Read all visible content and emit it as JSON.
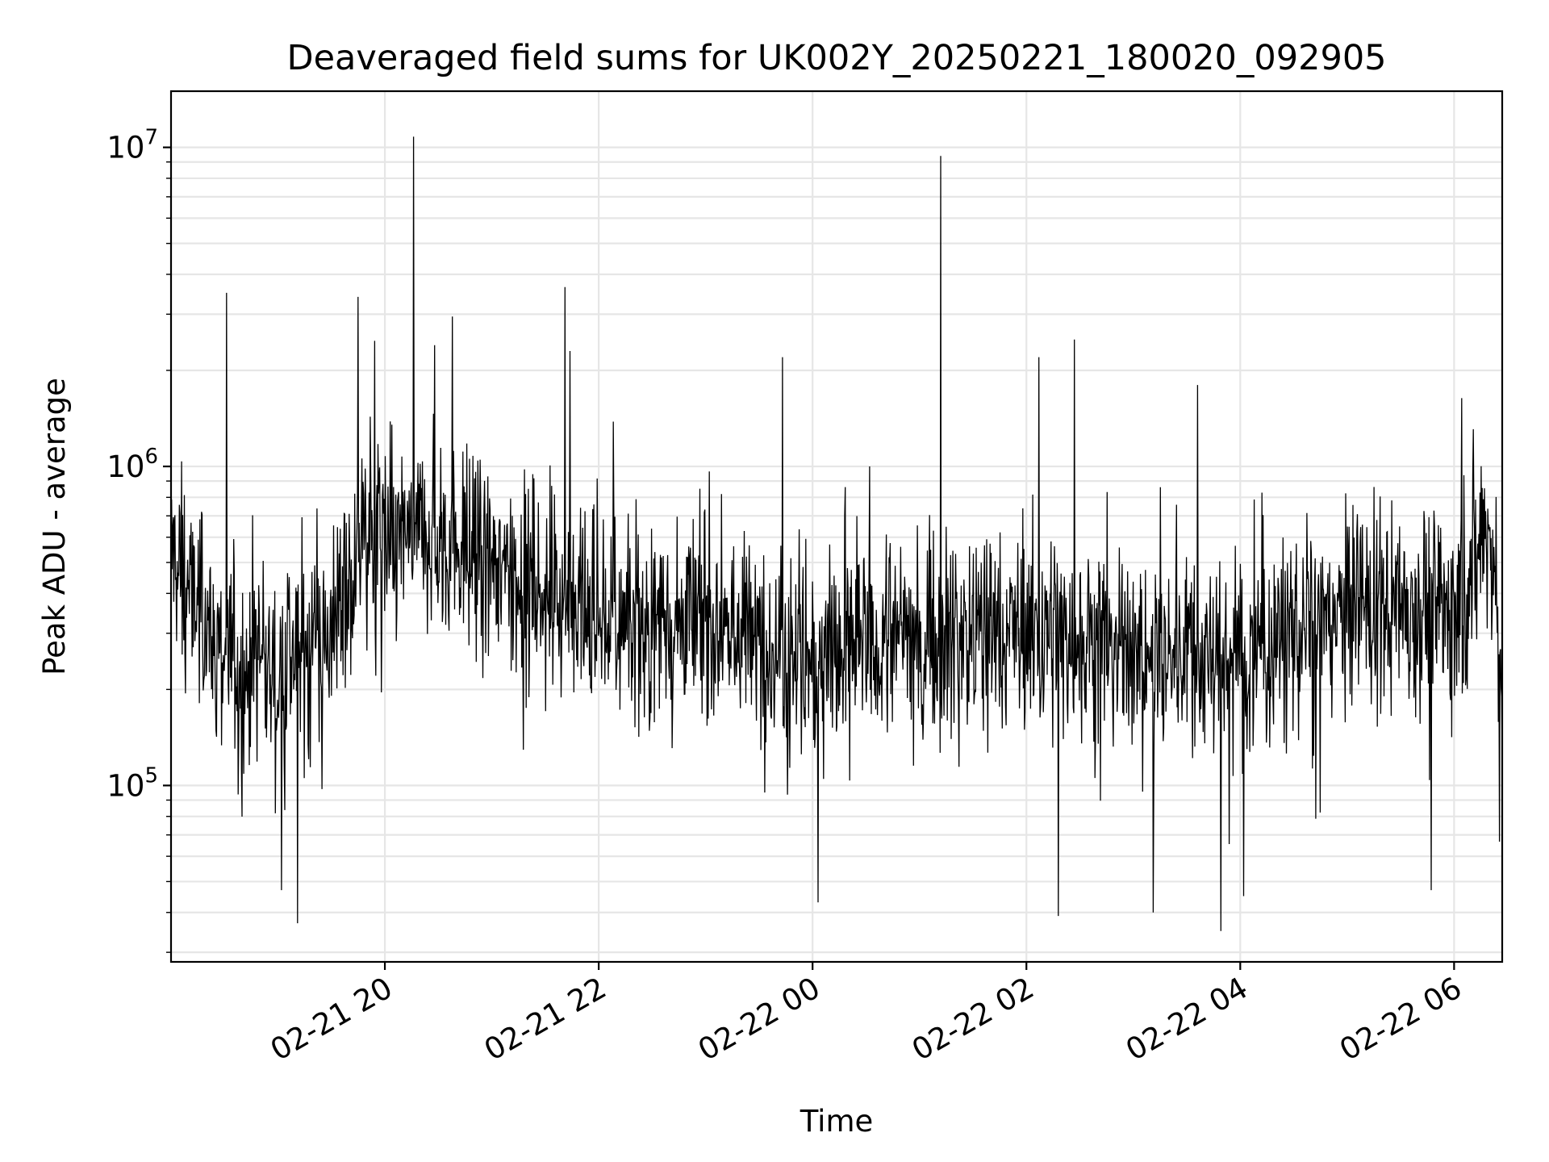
{
  "chart_data": {
    "type": "line",
    "title": "Deaveraged field sums for UK002Y_20250221_180020_092905",
    "xlabel": "Time",
    "ylabel": "Peak ADU - average",
    "yscale": "log",
    "ylim": [
      28000,
      15000000
    ],
    "xlim": [
      "2025-02-21 18:00",
      "2025-02-22 06:27"
    ],
    "grid": true,
    "x_ticks": [
      {
        "x": "2025-02-21 20:00",
        "label": "02-21 20"
      },
      {
        "x": "2025-02-21 22:00",
        "label": "02-21 22"
      },
      {
        "x": "2025-02-22 00:00",
        "label": "02-22 00"
      },
      {
        "x": "2025-02-22 02:00",
        "label": "02-22 02"
      },
      {
        "x": "2025-02-22 04:00",
        "label": "02-22 04"
      },
      {
        "x": "2025-02-22 06:00",
        "label": "02-22 06"
      }
    ],
    "y_ticks": [
      {
        "y": 100000,
        "base": "10",
        "exp": "5"
      },
      {
        "y": 1000000,
        "base": "10",
        "exp": "6"
      },
      {
        "y": 10000000,
        "base": "10",
        "exp": "7"
      }
    ],
    "series": [
      {
        "color": "#000000",
        "baseline_profile": [
          {
            "x": "2025-02-21 18:00",
            "y": 550000
          },
          {
            "x": "2025-02-21 18:10",
            "y": 400000
          },
          {
            "x": "2025-02-21 18:30",
            "y": 260000
          },
          {
            "x": "2025-02-21 19:00",
            "y": 230000
          },
          {
            "x": "2025-02-21 19:30",
            "y": 320000
          },
          {
            "x": "2025-02-21 19:50",
            "y": 550000
          },
          {
            "x": "2025-02-21 20:20",
            "y": 620000
          },
          {
            "x": "2025-02-21 20:50",
            "y": 520000
          },
          {
            "x": "2025-02-21 21:30",
            "y": 400000
          },
          {
            "x": "2025-02-21 22:00",
            "y": 320000
          },
          {
            "x": "2025-02-21 23:00",
            "y": 330000
          },
          {
            "x": "2025-02-22 00:00",
            "y": 250000
          },
          {
            "x": "2025-02-22 01:00",
            "y": 300000
          },
          {
            "x": "2025-02-22 02:00",
            "y": 310000
          },
          {
            "x": "2025-02-22 03:00",
            "y": 260000
          },
          {
            "x": "2025-02-22 04:00",
            "y": 250000
          },
          {
            "x": "2025-02-22 05:00",
            "y": 360000
          },
          {
            "x": "2025-02-22 06:00",
            "y": 370000
          },
          {
            "x": "2025-02-22 06:20",
            "y": 650000
          },
          {
            "x": "2025-02-22 06:27",
            "y": 200000
          }
        ],
        "peaks": [
          {
            "x": "2025-02-21 18:31",
            "y": 3500000
          },
          {
            "x": "2025-02-21 19:45",
            "y": 3400000
          },
          {
            "x": "2025-02-21 20:16",
            "y": 10800000
          },
          {
            "x": "2025-02-21 20:28",
            "y": 2400000
          },
          {
            "x": "2025-02-21 20:38",
            "y": 2950000
          },
          {
            "x": "2025-02-21 21:41",
            "y": 3650000
          },
          {
            "x": "2025-02-21 21:44",
            "y": 2300000
          },
          {
            "x": "2025-02-21 23:43",
            "y": 2200000
          },
          {
            "x": "2025-02-22 01:12",
            "y": 9400000
          },
          {
            "x": "2025-02-22 02:07",
            "y": 2200000
          },
          {
            "x": "2025-02-22 02:27",
            "y": 2500000
          },
          {
            "x": "2025-02-22 03:36",
            "y": 1800000
          }
        ],
        "troughs": [
          {
            "x": "2025-02-21 19:11",
            "y": 37000
          },
          {
            "x": "2025-02-21 19:02",
            "y": 47000
          },
          {
            "x": "2025-02-22 00:03",
            "y": 43000
          },
          {
            "x": "2025-02-22 02:18",
            "y": 39000
          },
          {
            "x": "2025-02-22 03:11",
            "y": 40000
          },
          {
            "x": "2025-02-22 03:49",
            "y": 35000
          },
          {
            "x": "2025-02-22 04:02",
            "y": 45000
          },
          {
            "x": "2025-02-22 05:47",
            "y": 47000
          }
        ]
      }
    ]
  }
}
